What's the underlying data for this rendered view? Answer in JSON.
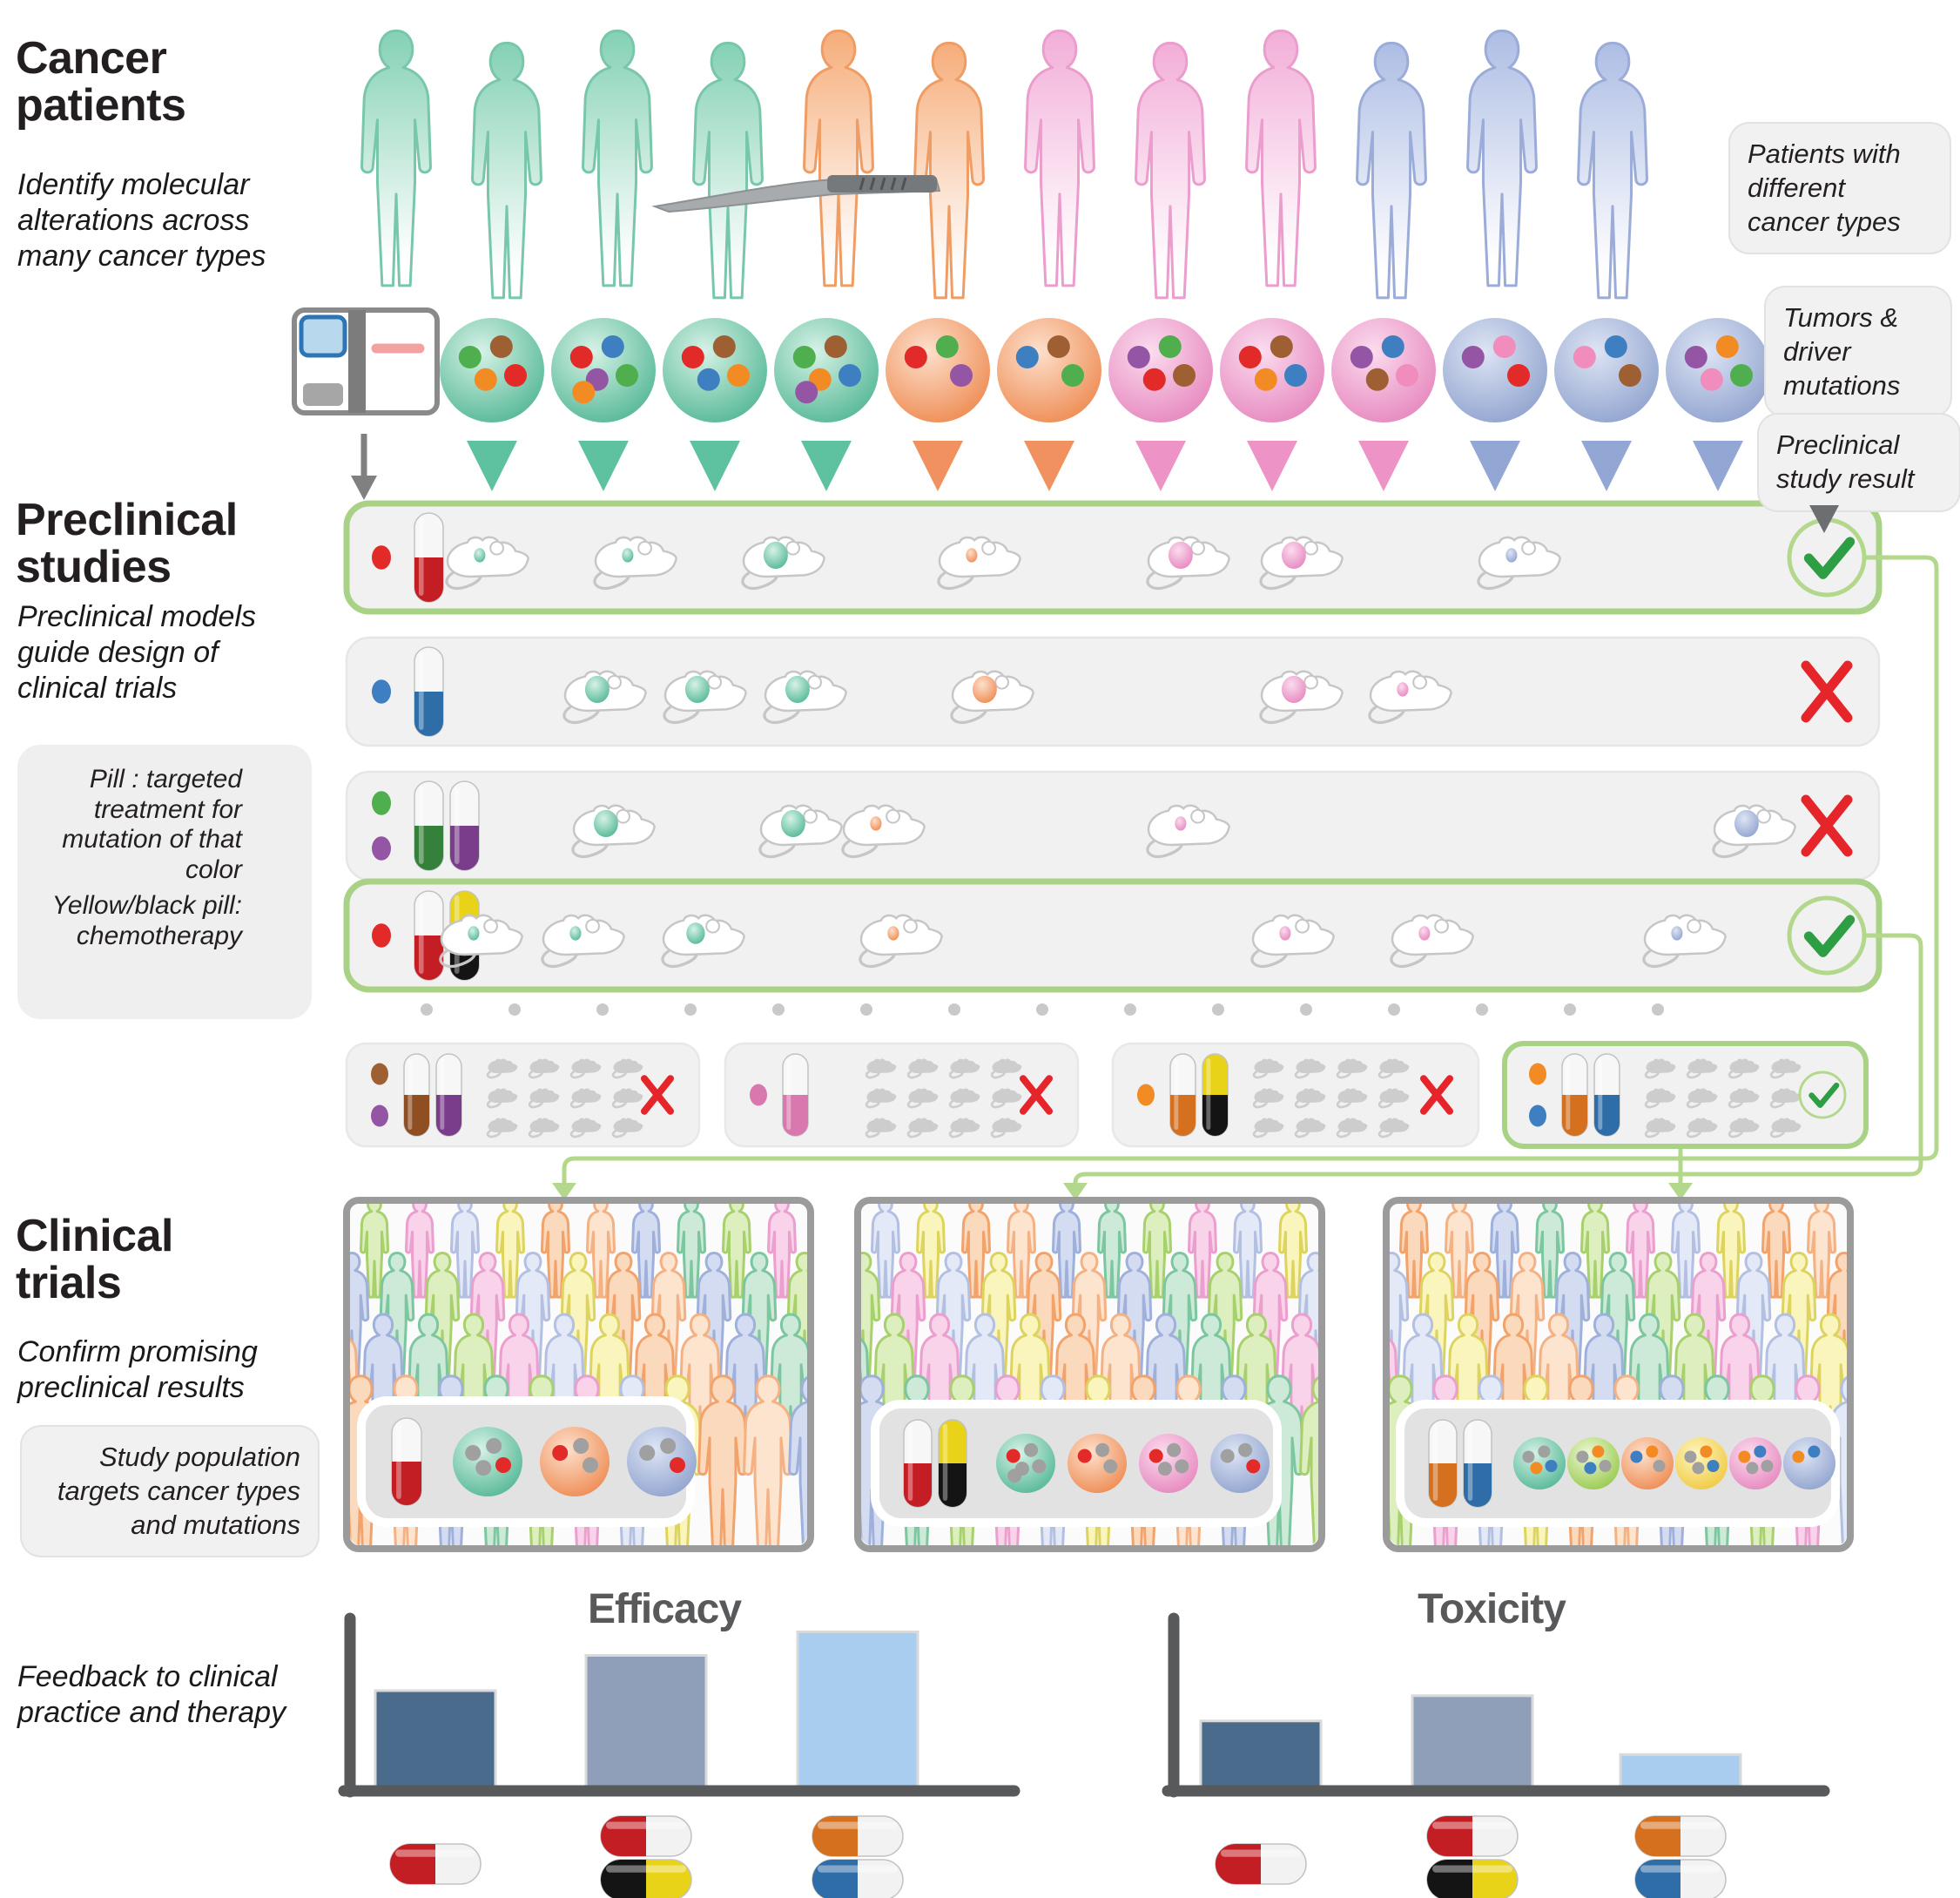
{
  "header": {
    "title": "Cancer\npatients",
    "subtitle": "Identify molecular\nalterations across\nmany cancer types"
  },
  "callouts": {
    "patients": "Patients with\ndifferent\ncancer types",
    "tumors": "Tumors &\ndriver\nmutations",
    "result": "Preclinical\nstudy result",
    "population": "Study population\ntargets cancer types\nand mutations"
  },
  "preclinical": {
    "title": "Preclinical\nstudies",
    "subtitle": "Preclinical models\nguide design of\nclinical trials",
    "legend_pill": "Pill : targeted\ntreatment for\nmutation of that\ncolor",
    "legend_chemo": "Yellow/black pill:\nchemotherapy",
    "rows": [
      {
        "dots": [
          "red"
        ],
        "pills": [
          "red"
        ],
        "result": "pass",
        "mice": [
          {
            "x": 555,
            "c": "teal",
            "s": "s"
          },
          {
            "x": 725,
            "c": "teal",
            "s": "s"
          },
          {
            "x": 895,
            "c": "teal",
            "s": "l"
          },
          {
            "x": 1120,
            "c": "orange",
            "s": "s"
          },
          {
            "x": 1360,
            "c": "pink",
            "s": "l"
          },
          {
            "x": 1490,
            "c": "pink",
            "s": "l"
          },
          {
            "x": 1740,
            "c": "blue",
            "s": "s"
          }
        ]
      },
      {
        "dots": [
          "blue"
        ],
        "pills": [
          "blue"
        ],
        "result": "fail",
        "mice": [
          {
            "x": 690,
            "c": "teal",
            "s": "l"
          },
          {
            "x": 805,
            "c": "teal",
            "s": "l"
          },
          {
            "x": 920,
            "c": "teal",
            "s": "l"
          },
          {
            "x": 1135,
            "c": "orange",
            "s": "l"
          },
          {
            "x": 1490,
            "c": "pink",
            "s": "l"
          },
          {
            "x": 1615,
            "c": "pink",
            "s": "s"
          }
        ]
      },
      {
        "dots": [
          "green",
          "purple"
        ],
        "pills": [
          "green",
          "purple"
        ],
        "result": "fail",
        "mice": [
          {
            "x": 700,
            "c": "teal",
            "s": "l"
          },
          {
            "x": 915,
            "c": "teal",
            "s": "l"
          },
          {
            "x": 1010,
            "c": "orange",
            "s": "s"
          },
          {
            "x": 1360,
            "c": "pink",
            "s": "s"
          },
          {
            "x": 2010,
            "c": "blue",
            "s": "l"
          }
        ]
      },
      {
        "dots": [
          "red"
        ],
        "pills": [
          "red",
          "chemo"
        ],
        "result": "pass",
        "mice": [
          {
            "x": 548,
            "c": "teal",
            "s": "s"
          },
          {
            "x": 665,
            "c": "teal",
            "s": "s"
          },
          {
            "x": 803,
            "c": "teal",
            "s": "m"
          },
          {
            "x": 1030,
            "c": "orange",
            "s": "s"
          },
          {
            "x": 1480,
            "c": "pink",
            "s": "s"
          },
          {
            "x": 1640,
            "c": "pink",
            "s": "s"
          },
          {
            "x": 1930,
            "c": "blue",
            "s": "s"
          }
        ]
      }
    ],
    "studies": [
      {
        "dots": [
          "brown",
          "purple"
        ],
        "pills": [
          "brown",
          "purple"
        ],
        "result": "fail"
      },
      {
        "dots": [
          "pinkPill"
        ],
        "pills": [
          "pinkPill"
        ],
        "result": "fail"
      },
      {
        "dots": [
          "orange"
        ],
        "pills": [
          "orange",
          "chemo"
        ],
        "result": "fail"
      },
      {
        "dots": [
          "orange",
          "blue"
        ],
        "pills": [
          "orange",
          "blue"
        ],
        "result": "pass"
      }
    ]
  },
  "patients": {
    "figures": [
      "teal",
      "teal",
      "teal",
      "teal",
      "orange",
      "orange",
      "pink",
      "pink",
      "pink",
      "blue",
      "blue",
      "blue"
    ]
  },
  "tumors": [
    {
      "c": "teal",
      "dots": [
        "green",
        "brown",
        "red",
        "orange"
      ]
    },
    {
      "c": "teal",
      "dots": [
        "red",
        "blue",
        "green",
        "purple",
        "orange"
      ]
    },
    {
      "c": "teal",
      "dots": [
        "red",
        "brown",
        "orange",
        "blue"
      ]
    },
    {
      "c": "teal",
      "dots": [
        "green",
        "brown",
        "blue",
        "orange",
        "purple"
      ]
    },
    {
      "c": "orange",
      "dots": [
        "red",
        "green",
        "purple"
      ]
    },
    {
      "c": "orange",
      "dots": [
        "blue",
        "brown",
        "green"
      ]
    },
    {
      "c": "pink",
      "dots": [
        "purple",
        "green",
        "brown",
        "red"
      ]
    },
    {
      "c": "pink",
      "dots": [
        "red",
        "brown",
        "blue",
        "orange"
      ]
    },
    {
      "c": "pink",
      "dots": [
        "purple",
        "blue",
        "pink",
        "brown"
      ]
    },
    {
      "c": "blue",
      "dots": [
        "purple",
        "pink",
        "red"
      ]
    },
    {
      "c": "blue",
      "dots": [
        "pink",
        "blue",
        "brown"
      ]
    },
    {
      "c": "blue",
      "dots": [
        "purple",
        "orange",
        "green",
        "pink"
      ]
    }
  ],
  "clinical": {
    "title": "Clinical\ntrials",
    "subtitle": "Confirm promising\npreclinical results",
    "feedback": "Feedback to clinical\npractice and therapy",
    "panels": [
      {
        "pills": [
          "red"
        ],
        "tumors": [
          {
            "c": "teal",
            "dots": [
              "gray",
              "gray",
              "red",
              "gray"
            ]
          },
          {
            "c": "orange",
            "dots": [
              "red",
              "gray",
              "gray"
            ]
          },
          {
            "c": "blue",
            "dots": [
              "gray",
              "gray",
              "red"
            ]
          }
        ]
      },
      {
        "pills": [
          "red",
          "chemo"
        ],
        "tumors": [
          {
            "c": "teal",
            "dots": [
              "red",
              "gray",
              "gray",
              "gray",
              "gray"
            ]
          },
          {
            "c": "orange",
            "dots": [
              "red",
              "gray",
              "gray"
            ]
          },
          {
            "c": "pink",
            "dots": [
              "red",
              "gray",
              "gray",
              "gray"
            ]
          },
          {
            "c": "blue",
            "dots": [
              "gray",
              "gray",
              "red"
            ]
          }
        ]
      },
      {
        "pills": [
          "orange",
          "blue"
        ],
        "tumors": [
          {
            "c": "teal",
            "dots": [
              "gray",
              "gray",
              "blue",
              "orange"
            ]
          },
          {
            "c": "green",
            "dots": [
              "gray",
              "orange",
              "gray",
              "blue"
            ]
          },
          {
            "c": "orange",
            "dots": [
              "blue",
              "orange",
              "gray"
            ]
          },
          {
            "c": "yellow",
            "dots": [
              "gray",
              "orange",
              "blue",
              "gray"
            ]
          },
          {
            "c": "pink",
            "dots": [
              "orange",
              "blue",
              "gray",
              "gray"
            ]
          },
          {
            "c": "blue",
            "dots": [
              "orange",
              "blue"
            ]
          }
        ]
      }
    ]
  },
  "chart_data": [
    {
      "type": "bar",
      "title": "Efficacy",
      "categories": [
        "targeted pill (red)",
        "targeted pill (red) + chemotherapy",
        "targeted pill (orange) + targeted pill (blue)"
      ],
      "values": [
        57,
        78,
        92
      ],
      "ylim": [
        0,
        100
      ],
      "grid": false,
      "xlabel": "",
      "ylabel": "",
      "bar_colors": [
        "#4a6b8c",
        "#8f9fba",
        "#a9cdee"
      ],
      "pill_groups": [
        [
          "red"
        ],
        [
          "red",
          "chemo"
        ],
        [
          "orange",
          "blue"
        ]
      ]
    },
    {
      "type": "bar",
      "title": "Toxicity",
      "categories": [
        "targeted pill (red)",
        "targeted pill (red) + chemotherapy",
        "targeted pill (orange) + targeted pill (blue)"
      ],
      "values": [
        39,
        54,
        19
      ],
      "ylim": [
        0,
        100
      ],
      "grid": false,
      "xlabel": "",
      "ylabel": "",
      "bar_colors": [
        "#4a6b8c",
        "#8f9fba",
        "#a9cdee"
      ],
      "pill_groups": [
        [
          "red"
        ],
        [
          "red",
          "chemo"
        ],
        [
          "orange",
          "blue"
        ]
      ]
    }
  ],
  "colors": {
    "pass": "#2e9e44",
    "fail": "#e5252a",
    "connector": "#b3d88c",
    "axis": "#58595b",
    "dot_red": "#e22a28",
    "dot_green": "#4fae4e",
    "dot_blue": "#3e7fc1",
    "dot_purple": "#9455a5",
    "dot_orange": "#f28b24",
    "dot_brown": "#9e5f33",
    "dot_pink": "#f18dbd",
    "dot_gray": "#a0a0a0",
    "pill_red": "#c41e25",
    "pill_blue": "#2f6da8",
    "pill_green": "#35803a",
    "pill_purple": "#7a3d8c",
    "pill_brown": "#8f4f22",
    "pill_pink": "#d878ae",
    "pill_orange": "#d5701f",
    "pill_chemo_yellow": "#e9d318",
    "pill_chemo_black": "#141414"
  }
}
